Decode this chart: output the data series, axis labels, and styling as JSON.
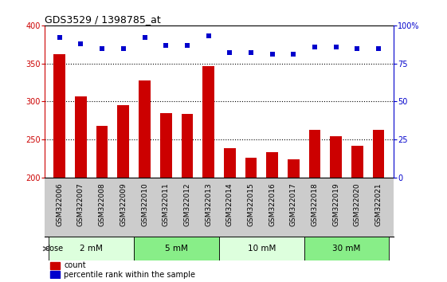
{
  "title": "GDS3529 / 1398785_at",
  "categories": [
    "GSM322006",
    "GSM322007",
    "GSM322008",
    "GSM322009",
    "GSM322010",
    "GSM322011",
    "GSM322012",
    "GSM322013",
    "GSM322014",
    "GSM322015",
    "GSM322016",
    "GSM322017",
    "GSM322018",
    "GSM322019",
    "GSM322020",
    "GSM322021"
  ],
  "bar_values": [
    362,
    307,
    268,
    295,
    328,
    285,
    284,
    347,
    239,
    226,
    233,
    224,
    263,
    254,
    242,
    263
  ],
  "dot_values": [
    92,
    88,
    85,
    85,
    92,
    87,
    87,
    93,
    82,
    82,
    81,
    81,
    86,
    86,
    85,
    85
  ],
  "bar_color": "#cc0000",
  "dot_color": "#0000cc",
  "ylim_left": [
    200,
    400
  ],
  "ylim_right": [
    0,
    100
  ],
  "yticks_left": [
    200,
    250,
    300,
    350,
    400
  ],
  "yticks_right": [
    0,
    25,
    50,
    75,
    100
  ],
  "ytick_right_labels": [
    "0",
    "25",
    "50",
    "75",
    "100%"
  ],
  "grid_values": [
    250,
    300,
    350
  ],
  "dose_groups": [
    {
      "label": "2 mM",
      "start": 0,
      "end": 4,
      "color": "#ddffdd"
    },
    {
      "label": "5 mM",
      "start": 4,
      "end": 8,
      "color": "#88ee88"
    },
    {
      "label": "10 mM",
      "start": 8,
      "end": 12,
      "color": "#ddffdd"
    },
    {
      "label": "30 mM",
      "start": 12,
      "end": 16,
      "color": "#88ee88"
    }
  ],
  "legend_count_label": "count",
  "legend_pct_label": "percentile rank within the sample",
  "dose_label": "dose",
  "xtick_bg": "#cccccc",
  "plot_bg": "#ffffff"
}
